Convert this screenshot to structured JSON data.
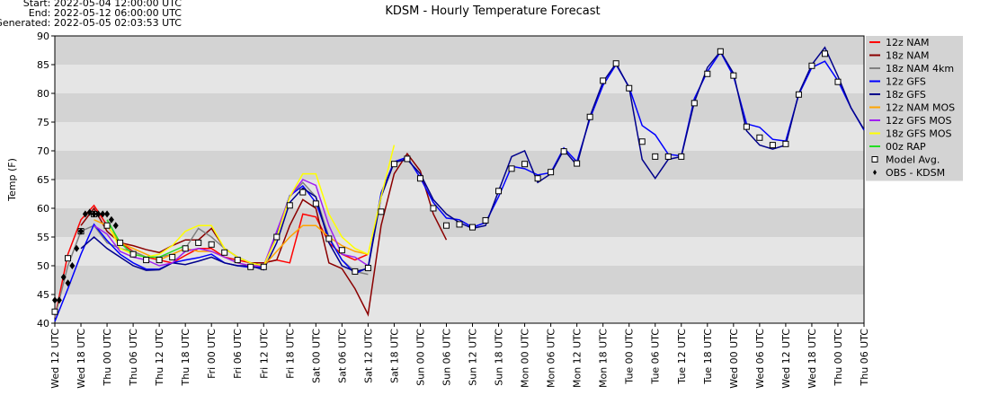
{
  "chart_data": {
    "type": "line",
    "title": "KDSM - Hourly Temperature Forecast",
    "header": [
      "Start: 2022-05-04 12:00:00 UTC",
      "End: 2022-05-12 06:00:00 UTC",
      "Generated: 2022-05-05 02:03:53 UTC"
    ],
    "y_label": "Temp (F)",
    "ylim": [
      40,
      90
    ],
    "yticks": [
      40,
      45,
      50,
      55,
      60,
      65,
      70,
      75,
      80,
      85,
      90
    ],
    "xlim": [
      0,
      186
    ],
    "xticks": [
      {
        "value": 0,
        "label": "Wed 12 UTC"
      },
      {
        "value": 6,
        "label": "Wed 18 UTC"
      },
      {
        "value": 12,
        "label": "Thu 00 UTC"
      },
      {
        "value": 18,
        "label": "Thu 06 UTC"
      },
      {
        "value": 24,
        "label": "Thu 12 UTC"
      },
      {
        "value": 30,
        "label": "Thu 18 UTC"
      },
      {
        "value": 36,
        "label": "Fri 00 UTC"
      },
      {
        "value": 42,
        "label": "Fri 06 UTC"
      },
      {
        "value": 48,
        "label": "Fri 12 UTC"
      },
      {
        "value": 54,
        "label": "Fri 18 UTC"
      },
      {
        "value": 60,
        "label": "Sat 00 UTC"
      },
      {
        "value": 66,
        "label": "Sat 06 UTC"
      },
      {
        "value": 72,
        "label": "Sat 12 UTC"
      },
      {
        "value": 78,
        "label": "Sat 18 UTC"
      },
      {
        "value": 84,
        "label": "Sun 00 UTC"
      },
      {
        "value": 90,
        "label": "Sun 06 UTC"
      },
      {
        "value": 96,
        "label": "Sun 12 UTC"
      },
      {
        "value": 102,
        "label": "Sun 18 UTC"
      },
      {
        "value": 108,
        "label": "Mon 00 UTC"
      },
      {
        "value": 114,
        "label": "Mon 06 UTC"
      },
      {
        "value": 120,
        "label": "Mon 12 UTC"
      },
      {
        "value": 126,
        "label": "Mon 18 UTC"
      },
      {
        "value": 132,
        "label": "Tue 00 UTC"
      },
      {
        "value": 138,
        "label": "Tue 06 UTC"
      },
      {
        "value": 144,
        "label": "Tue 12 UTC"
      },
      {
        "value": 150,
        "label": "Tue 18 UTC"
      },
      {
        "value": 156,
        "label": "Wed 00 UTC"
      },
      {
        "value": 162,
        "label": "Wed 06 UTC"
      },
      {
        "value": 168,
        "label": "Wed 12 UTC"
      },
      {
        "value": 174,
        "label": "Wed 18 UTC"
      },
      {
        "value": 180,
        "label": "Thu 00 UTC"
      },
      {
        "value": 186,
        "label": "Thu 06 UTC"
      }
    ],
    "band_colors": [
      "#e5e5e5",
      "#d3d3d3"
    ],
    "legend_background": "#d3d3d3",
    "legend": "right",
    "series": [
      {
        "name": "12z NAM",
        "color": "#ff0000",
        "style": "line",
        "x": [
          0,
          3,
          6,
          9,
          12,
          15,
          18,
          21,
          24,
          27,
          30,
          33,
          36,
          39,
          42,
          45,
          48,
          51,
          54,
          57,
          60,
          63,
          66,
          69,
          72
        ],
        "values": [
          41,
          52,
          58,
          60.5,
          57,
          54,
          52.5,
          51.5,
          51,
          50.5,
          51.8,
          53,
          53,
          51.5,
          51,
          50.5,
          50.5,
          51,
          50.5,
          59,
          58.5,
          54,
          52,
          51,
          52
        ]
      },
      {
        "name": "18z NAM",
        "color": "#8b0000",
        "style": "line",
        "x": [
          6,
          9,
          12,
          15,
          18,
          21,
          24,
          27,
          30,
          33,
          36,
          39,
          42,
          45,
          48,
          51,
          54,
          57,
          60,
          63,
          66,
          69,
          72,
          75,
          78,
          81,
          84,
          87,
          90
        ],
        "values": [
          57,
          60,
          56,
          54,
          53.5,
          52.8,
          52.3,
          53.5,
          54.5,
          54.5,
          56.5,
          53,
          51.5,
          50.5,
          50.5,
          51,
          57,
          61.5,
          60,
          50.5,
          49.5,
          46,
          41.5,
          57,
          66,
          69.5,
          66.5,
          59,
          54.5
        ]
      },
      {
        "name": "18z NAM 4km",
        "color": "#808080",
        "style": "line",
        "x": [
          0,
          3,
          6,
          9,
          12,
          15,
          18,
          21,
          24,
          27,
          30,
          33,
          36,
          39,
          42,
          45,
          48,
          51,
          54,
          57,
          60,
          63,
          66,
          69,
          72
        ],
        "values": [
          41,
          50,
          56,
          57,
          54,
          53,
          52.5,
          51.5,
          51.5,
          52,
          53,
          56.5,
          55,
          53,
          51.5,
          50.5,
          50,
          55,
          62,
          64.5,
          62,
          55,
          51,
          49,
          48.5
        ]
      },
      {
        "name": "12z GFS",
        "color": "#0000ff",
        "style": "line",
        "x": [
          0,
          3,
          6,
          9,
          12,
          15,
          18,
          21,
          24,
          27,
          30,
          33,
          36,
          39,
          42,
          45,
          48,
          51,
          54,
          57,
          60,
          63,
          66,
          69,
          72,
          75,
          78,
          81,
          84,
          87,
          90,
          93,
          96,
          99,
          102,
          105,
          108,
          111,
          114,
          117,
          120,
          123,
          126,
          129,
          132,
          135,
          138,
          141,
          144,
          147,
          150,
          153,
          156,
          159,
          162,
          165,
          168,
          171,
          174,
          177,
          180,
          183,
          186
        ],
        "values": [
          40.3,
          46,
          52,
          57.2,
          54.4,
          52,
          50.5,
          49.4,
          49.4,
          50.5,
          51,
          51.4,
          52,
          50.5,
          50,
          49.7,
          49.8,
          55.6,
          62.2,
          63.9,
          61,
          54.8,
          51,
          48.6,
          49.7,
          62.7,
          68.1,
          68.9,
          65.3,
          61,
          58.3,
          58,
          56.7,
          57.5,
          62,
          67.3,
          66.9,
          65.8,
          66.2,
          70.5,
          68.1,
          75.6,
          81.4,
          85,
          81.1,
          74.4,
          72.8,
          69.4,
          69.1,
          79.1,
          83.8,
          87.2,
          83,
          74.7,
          74.1,
          72,
          71.7,
          79.8,
          84.5,
          85.6,
          82.2,
          77.5,
          73.6
        ]
      },
      {
        "name": "18z GFS",
        "color": "#00008b",
        "style": "line",
        "x": [
          6,
          9,
          12,
          15,
          18,
          21,
          24,
          27,
          30,
          33,
          36,
          39,
          42,
          45,
          48,
          51,
          54,
          57,
          60,
          63,
          66,
          69,
          72,
          75,
          78,
          81,
          84,
          87,
          90,
          93,
          96,
          99,
          102,
          105,
          108,
          111,
          114,
          117,
          120,
          123,
          126,
          129,
          132,
          135,
          138,
          141,
          144,
          147,
          150,
          153,
          156,
          159,
          162,
          165,
          168,
          171,
          174,
          177,
          180,
          183,
          186
        ],
        "values": [
          53,
          55,
          53,
          51.5,
          50,
          49.2,
          49.3,
          50.5,
          50.2,
          50.8,
          51.5,
          50.5,
          50,
          50,
          49.3,
          54,
          61,
          63.5,
          62,
          54,
          50,
          49,
          49.5,
          62,
          68,
          68.5,
          66,
          61.5,
          59,
          57.5,
          56.5,
          57,
          63,
          69,
          70,
          64.5,
          66,
          70.2,
          67.5,
          76,
          82,
          85.2,
          81,
          68.5,
          65.2,
          68.5,
          69,
          78.5,
          84.5,
          87.3,
          83.5,
          73.5,
          71,
          70.3,
          71,
          80,
          85,
          88,
          83,
          77.5,
          73.7
        ]
      },
      {
        "name": "12z NAM MOS",
        "color": "#ffa500",
        "style": "line",
        "x": [
          9,
          12,
          15,
          18,
          21,
          24,
          27,
          30,
          33,
          36,
          39,
          42,
          45,
          48,
          51,
          54,
          57,
          60,
          63,
          66,
          69,
          72
        ],
        "values": [
          58,
          57,
          54,
          53,
          52,
          51,
          52,
          53,
          52.5,
          52.5,
          51.5,
          50.5,
          50,
          50,
          52.5,
          55,
          57,
          57,
          55,
          53.5,
          52.5,
          52
        ]
      },
      {
        "name": "12z GFS MOS",
        "color": "#a020f0",
        "style": "line",
        "x": [
          9,
          12,
          15,
          18,
          21,
          24,
          27,
          30,
          33,
          36,
          39,
          42,
          45,
          48,
          51,
          54,
          57,
          60,
          63,
          66,
          69,
          72
        ],
        "values": [
          57,
          55.5,
          52.5,
          51.5,
          51,
          50,
          50.5,
          52.5,
          53,
          52.5,
          51.5,
          50.5,
          50,
          50,
          56,
          62,
          65,
          64,
          57,
          52,
          51.5,
          50
        ]
      },
      {
        "name": "18z GFS MOS",
        "color": "#ffff00",
        "style": "line",
        "x": [
          12,
          15,
          18,
          21,
          24,
          27,
          30,
          33,
          36,
          39,
          42,
          45,
          48,
          51,
          54,
          57,
          60,
          63,
          66,
          69,
          72,
          75,
          78
        ],
        "values": [
          57.5,
          53,
          52,
          51.5,
          52,
          53.5,
          56,
          57,
          57,
          53,
          51.5,
          50.5,
          50,
          55,
          62,
          66,
          66,
          59,
          55,
          53,
          52,
          62,
          71
        ]
      },
      {
        "name": "00z RAP",
        "color": "#22dd22",
        "style": "line",
        "x": [
          12,
          15,
          18,
          21,
          24,
          27,
          30
        ],
        "values": [
          58,
          54,
          52,
          51.5,
          51.5,
          52.5,
          53.5
        ]
      },
      {
        "name": "Model Avg.",
        "color": "#000000",
        "style": "square",
        "x": [
          0,
          3,
          6,
          9,
          12,
          15,
          18,
          21,
          24,
          27,
          30,
          33,
          36,
          39,
          42,
          45,
          48,
          51,
          54,
          57,
          60,
          63,
          66,
          69,
          72,
          75,
          78,
          81,
          84,
          87,
          90,
          93,
          96,
          99,
          102,
          105,
          108,
          111,
          114,
          117,
          120,
          123,
          126,
          129,
          132,
          135,
          138,
          141,
          144,
          147,
          150,
          153,
          156,
          159,
          162,
          165,
          168,
          171,
          174,
          177,
          180
        ],
        "values": [
          42,
          51.3,
          56,
          59,
          57,
          54,
          52,
          51,
          51,
          51.5,
          53,
          54,
          53.7,
          52.3,
          51,
          49.8,
          49.8,
          55,
          60.5,
          62.8,
          60.8,
          54.7,
          52.7,
          49,
          49.6,
          59.4,
          67.7,
          68.6,
          65.2,
          60,
          57,
          57.2,
          56.7,
          57.9,
          63,
          66.9,
          67.7,
          65.2,
          66.3,
          69.9,
          67.8,
          75.9,
          82.2,
          85.2,
          80.9,
          71.6,
          69,
          69,
          69,
          78.3,
          83.4,
          87.3,
          83.1,
          74.2,
          72.3,
          71,
          71.2,
          79.8,
          84.8,
          86.9,
          82
        ]
      },
      {
        "name": "OBS - KDSM",
        "color": "#000000",
        "style": "diamond",
        "x": [
          0,
          1,
          2,
          3,
          4,
          5,
          6,
          7,
          8,
          9,
          10,
          11,
          12,
          13,
          14
        ],
        "values": [
          44,
          44,
          48,
          47,
          50,
          53,
          56,
          59,
          59.3,
          59,
          59,
          59,
          59,
          58,
          57
        ]
      }
    ]
  }
}
